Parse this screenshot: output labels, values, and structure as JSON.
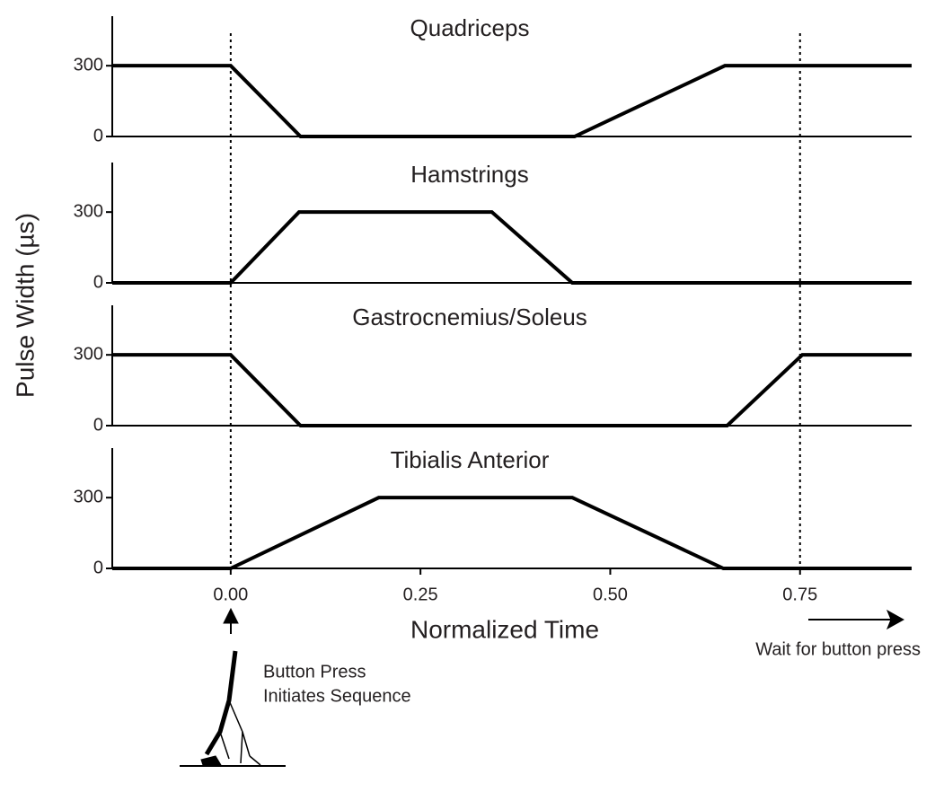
{
  "ylabel": "Pulse Width (µs)",
  "vlines": [
    0,
    0.75
  ],
  "annotations": {
    "button": [
      "Button Press",
      "Initiates Sequence"
    ],
    "wait": "Wait for button press"
  },
  "chart_data": [
    {
      "type": "line",
      "title": "Quadriceps",
      "x": [
        -0.156,
        0,
        0.092,
        0.453,
        0.651,
        0.897
      ],
      "values": [
        300,
        300,
        0,
        0,
        300,
        300
      ],
      "color": "#000000",
      "xlim": [
        -0.156,
        0.897
      ],
      "ylim": [
        0,
        510
      ],
      "yticks": [
        0,
        300
      ]
    },
    {
      "type": "line",
      "title": "Hamstrings",
      "x": [
        -0.156,
        0,
        0.09,
        0.344,
        0.45,
        0.897
      ],
      "values": [
        0,
        0,
        300,
        300,
        0,
        0
      ],
      "color": "#000000",
      "xlim": [
        -0.156,
        0.897
      ],
      "ylim": [
        0,
        510
      ],
      "yticks": [
        0,
        300
      ]
    },
    {
      "type": "line",
      "title": "Gastrocnemius/Soleus",
      "x": [
        -0.156,
        0,
        0.092,
        0.654,
        0.753,
        0.897
      ],
      "values": [
        300,
        300,
        0,
        0,
        300,
        300
      ],
      "color": "#000000",
      "xlim": [
        -0.156,
        0.897
      ],
      "ylim": [
        0,
        510
      ],
      "yticks": [
        0,
        300
      ]
    },
    {
      "type": "line",
      "title": "Tibialis Anterior",
      "x": [
        -0.156,
        0,
        0.195,
        0.45,
        0.649,
        0.897
      ],
      "values": [
        0,
        0,
        300,
        300,
        0,
        0
      ],
      "color": "#000000",
      "xlim": [
        -0.156,
        0.897
      ],
      "ylim": [
        0,
        510
      ],
      "yticks": [
        0,
        300
      ],
      "xlabel": "Normalized Time",
      "xticks": [
        {
          "value": 0,
          "label": "0.00"
        },
        {
          "value": 0.25,
          "label": "0.25"
        },
        {
          "value": 0.5,
          "label": "0.50"
        },
        {
          "value": 0.75,
          "label": "0.75"
        }
      ]
    }
  ]
}
